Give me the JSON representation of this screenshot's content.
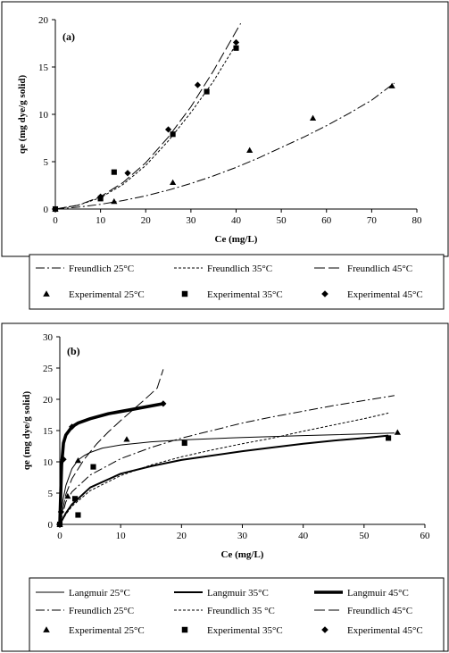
{
  "chart_data": [
    {
      "panel": "(a)",
      "type": "scatter",
      "xlabel": "Ce (mg/L)",
      "ylabel": "qe (mg dye/g solid)",
      "xlim": [
        0,
        80
      ],
      "ylim": [
        0,
        20
      ],
      "x_ticks": [
        0,
        10,
        20,
        30,
        40,
        50,
        60,
        70,
        80
      ],
      "y_ticks": [
        0,
        5,
        10,
        15,
        20
      ],
      "grid": false,
      "legend_placement": "below",
      "legend_columns": 3,
      "series": [
        {
          "name": "Freundlich 25°C",
          "kind": "line",
          "style": "dashdot",
          "x": [
            0,
            5,
            10,
            15,
            20,
            25,
            30,
            35,
            40,
            45,
            50,
            55,
            60,
            65,
            70,
            75
          ],
          "y": [
            0,
            0.2,
            0.5,
            0.9,
            1.4,
            2.0,
            2.7,
            3.5,
            4.4,
            5.4,
            6.5,
            7.6,
            8.8,
            10.1,
            11.5,
            13.3
          ]
        },
        {
          "name": "Freundlich 35°C",
          "kind": "line",
          "style": "dotted",
          "x": [
            0,
            5,
            10,
            15,
            20,
            25,
            30,
            35,
            40
          ],
          "y": [
            0,
            0.4,
            1.2,
            2.6,
            4.6,
            7.2,
            10.2,
            13.5,
            17.4
          ]
        },
        {
          "name": "Freundlich 45°C",
          "kind": "line",
          "style": "longdash",
          "x": [
            0,
            5,
            10,
            15,
            20,
            25,
            30,
            35,
            41
          ],
          "y": [
            0,
            0.4,
            1.3,
            2.8,
            4.9,
            7.6,
            10.8,
            14.6,
            19.6
          ]
        },
        {
          "name": "Experimental 25°C",
          "kind": "points",
          "marker": "triangle",
          "x": [
            0,
            13,
            26,
            43,
            57,
            74.5
          ],
          "y": [
            0,
            0.8,
            2.8,
            6.2,
            9.6,
            13.0
          ]
        },
        {
          "name": "Experimental 35°C",
          "kind": "points",
          "marker": "square",
          "x": [
            0,
            10,
            13,
            26,
            33.5,
            40
          ],
          "y": [
            0,
            1.1,
            3.9,
            7.9,
            12.4,
            17.0
          ]
        },
        {
          "name": "Experimental 45°C",
          "kind": "points",
          "marker": "diamond",
          "x": [
            0,
            10,
            16,
            25,
            31.5,
            40
          ],
          "y": [
            0,
            1.3,
            3.8,
            8.4,
            13.1,
            17.6
          ]
        }
      ]
    },
    {
      "panel": "(b)",
      "type": "scatter",
      "xlabel": "Ce (mg/L)",
      "ylabel": "qe (mg dye/g solid)",
      "xlim": [
        0,
        60
      ],
      "ylim": [
        0,
        30
      ],
      "x_ticks": [
        0,
        10,
        20,
        30,
        40,
        50,
        60
      ],
      "y_ticks": [
        0,
        5,
        10,
        15,
        20,
        25,
        30
      ],
      "grid": false,
      "legend_placement": "below",
      "legend_columns": 3,
      "series": [
        {
          "name": "Langmuir 25°C",
          "kind": "line",
          "style": "thin",
          "x": [
            0,
            0.5,
            1,
            2,
            3,
            4,
            5,
            7,
            10,
            15,
            20,
            30,
            40,
            55
          ],
          "y": [
            0,
            3.8,
            6.2,
            8.9,
            10.3,
            11.0,
            11.5,
            12.2,
            12.7,
            13.2,
            13.5,
            13.9,
            14.2,
            14.6
          ]
        },
        {
          "name": "Freundlich 25°C",
          "kind": "line",
          "style": "dashdot",
          "x": [
            0,
            1,
            2,
            5,
            10,
            15,
            20,
            25,
            30,
            35,
            40,
            45,
            50,
            55
          ],
          "y": [
            0,
            3.6,
            5.2,
            7.9,
            10.5,
            12.3,
            13.8,
            15.0,
            16.2,
            17.2,
            18.1,
            19.0,
            19.8,
            20.6
          ]
        },
        {
          "name": "Experimental 25°C",
          "kind": "points",
          "marker": "triangle",
          "x": [
            0,
            1.3,
            3,
            11,
            55.5
          ],
          "y": [
            0,
            4.5,
            10.2,
            13.6,
            14.7
          ]
        },
        {
          "name": "Langmuir 35°C",
          "kind": "line",
          "style": "medium",
          "x": [
            0,
            1,
            2,
            5,
            10,
            15,
            20,
            25,
            30,
            35,
            40,
            45,
            50,
            54
          ],
          "y": [
            0,
            1.8,
            3.2,
            5.9,
            8.1,
            9.3,
            10.3,
            11.0,
            11.7,
            12.3,
            12.9,
            13.4,
            13.8,
            14.2
          ]
        },
        {
          "name": "Freundlich 35 °C",
          "kind": "line",
          "style": "dotted",
          "x": [
            0,
            1,
            2,
            5,
            10,
            15,
            20,
            25,
            30,
            35,
            40,
            45,
            50,
            54
          ],
          "y": [
            0,
            1.6,
            2.9,
            5.4,
            7.8,
            9.5,
            10.8,
            11.9,
            12.9,
            13.8,
            14.9,
            15.9,
            16.9,
            17.8
          ]
        },
        {
          "name": "Experimental 35°C",
          "kind": "points",
          "marker": "square",
          "x": [
            0,
            2.5,
            3,
            5.5,
            20.5,
            54
          ],
          "y": [
            0,
            4.1,
            1.5,
            9.2,
            13.0,
            13.8
          ]
        },
        {
          "name": "Langmuir 45°C",
          "kind": "line",
          "style": "thick",
          "x": [
            0,
            0.3,
            0.6,
            1,
            2,
            3,
            5,
            8,
            12,
            17
          ],
          "y": [
            0,
            9.5,
            13.0,
            14.3,
            15.6,
            16.2,
            16.9,
            17.7,
            18.4,
            19.3
          ]
        },
        {
          "name": "Freundlich 45°C",
          "kind": "line",
          "style": "longdash",
          "x": [
            0,
            1,
            2,
            4,
            6,
            8,
            10,
            12,
            14,
            16,
            17
          ],
          "y": [
            0,
            4.8,
            7.3,
            10.4,
            12.8,
            14.8,
            16.6,
            18.3,
            20.0,
            21.8,
            24.8
          ]
        },
        {
          "name": "Experimental 45°C",
          "kind": "points",
          "marker": "diamond",
          "x": [
            0,
            0.2,
            0.6,
            2,
            17
          ],
          "y": [
            0,
            2.0,
            10.4,
            15.6,
            19.3
          ]
        }
      ]
    }
  ]
}
